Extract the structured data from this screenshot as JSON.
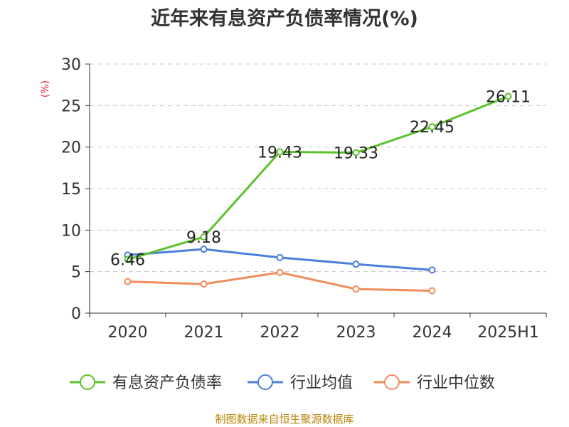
{
  "chart_data": {
    "type": "line",
    "title": "近年来有息资产负债率情况(%)",
    "ylabel": "(%)",
    "xlabel": "",
    "categories": [
      "2020",
      "2021",
      "2022",
      "2023",
      "2024",
      "2025H1"
    ],
    "ylim": [
      0,
      30
    ],
    "yticks": [
      "0",
      "5",
      "10",
      "15",
      "20",
      "25",
      "30"
    ],
    "grid": "horizontal-dashed",
    "legend_position": "bottom",
    "series": [
      {
        "name": "有息资产负债率",
        "color": "#5cc22c",
        "values": [
          6.46,
          9.18,
          19.43,
          19.33,
          22.45,
          26.11
        ],
        "labels": [
          "6.46",
          "9.18",
          "19.43",
          "19.33",
          "22.45",
          "26.11"
        ]
      },
      {
        "name": "行业均值",
        "color": "#4a7fdc",
        "values": [
          7.0,
          7.7,
          6.7,
          5.9,
          5.2,
          null
        ]
      },
      {
        "name": "行业中位数",
        "color": "#f08c5a",
        "values": [
          3.8,
          3.5,
          4.9,
          2.9,
          2.7,
          null
        ]
      }
    ]
  },
  "footer": {
    "source": "制图数据来自恒生聚源数据库"
  }
}
